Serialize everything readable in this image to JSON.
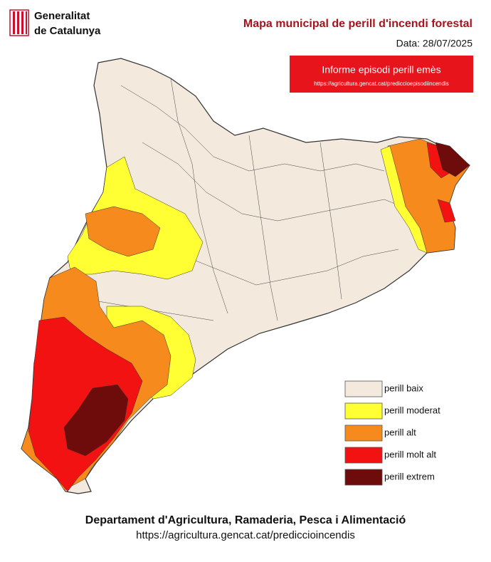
{
  "header": {
    "logo_line1": "Generalitat",
    "logo_line2": "de Catalunya",
    "title": "Mapa municipal de perill d'incendi forestal",
    "date": "Data: 28/07/2025"
  },
  "alert": {
    "text": "Informe episodi perill emès",
    "url": "https://agricultura.gencat.cat/prediccioepisodiincendis"
  },
  "legend": [
    {
      "label": "perill baix",
      "color": "#f3eadd"
    },
    {
      "label": "perill moderat",
      "color": "#ffff33"
    },
    {
      "label": "perill alt",
      "color": "#f78a1d"
    },
    {
      "label": "perill molt alt",
      "color": "#f21212"
    },
    {
      "label": "perill extrem",
      "color": "#6e0b0b"
    }
  ],
  "footer": {
    "department": "Departament d'Agricultura, Ramaderia, Pesca i Alimentació",
    "url": "https://agricultura.gencat.cat/prediccioincendis"
  }
}
